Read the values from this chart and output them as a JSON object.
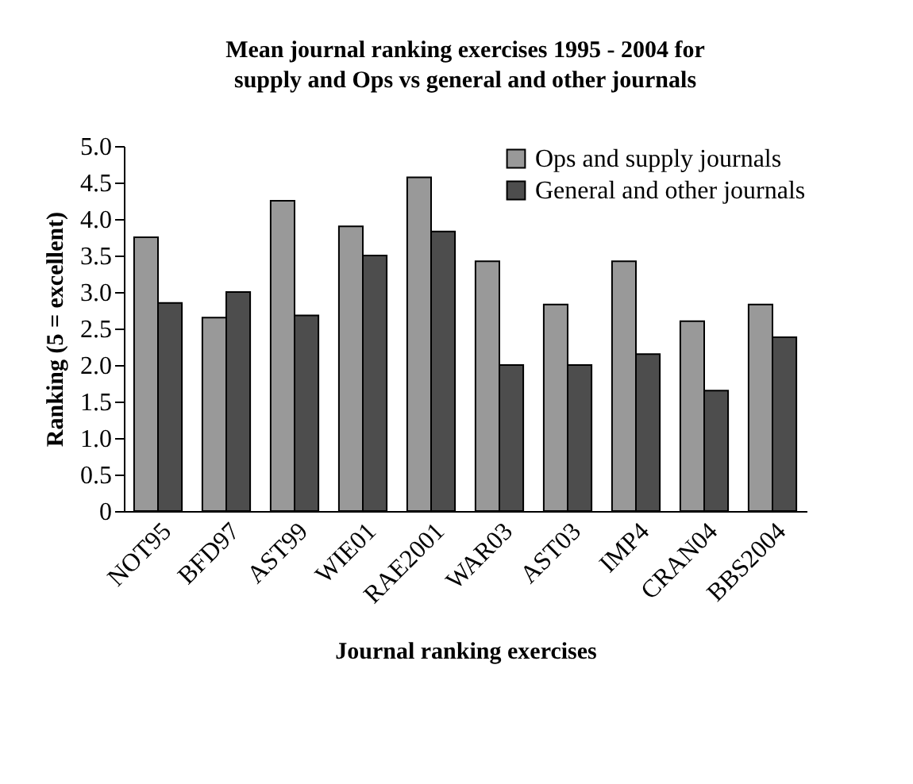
{
  "chart_data": {
    "type": "bar",
    "title": "Mean journal ranking exercises 1995 - 2004 for supply and Ops vs general and other journals",
    "xlabel": "Journal ranking exercises",
    "ylabel": "Ranking (5 = excellent)",
    "categories": [
      "NOT95",
      "BFD97",
      "AST99",
      "WIE01",
      "RAE2001",
      "WAR03",
      "AST03",
      "IMP4",
      "CRAN04",
      "BBS2004"
    ],
    "series": [
      {
        "name": "Ops and supply journals",
        "color": "#999999",
        "values": [
          3.75,
          2.65,
          4.25,
          3.9,
          4.57,
          3.42,
          2.83,
          3.42,
          2.6,
          2.83
        ]
      },
      {
        "name": "General and other journals",
        "color": "#4d4d4d",
        "values": [
          2.85,
          3.0,
          2.68,
          3.5,
          3.83,
          2.0,
          2.0,
          2.15,
          1.65,
          2.38
        ]
      }
    ],
    "ylim": [
      0,
      5
    ],
    "yticks": [
      0,
      0.5,
      {
        "value": 1,
        "label": "1.0"
      },
      1.5,
      {
        "value": 2,
        "label": "2.0"
      },
      2.5,
      {
        "value": 3,
        "label": "3.0"
      },
      3.5,
      {
        "value": 4,
        "label": "4.0"
      },
      4.5,
      {
        "value": 5,
        "label": "5.0"
      }
    ],
    "grid": false,
    "legend": "top right"
  }
}
